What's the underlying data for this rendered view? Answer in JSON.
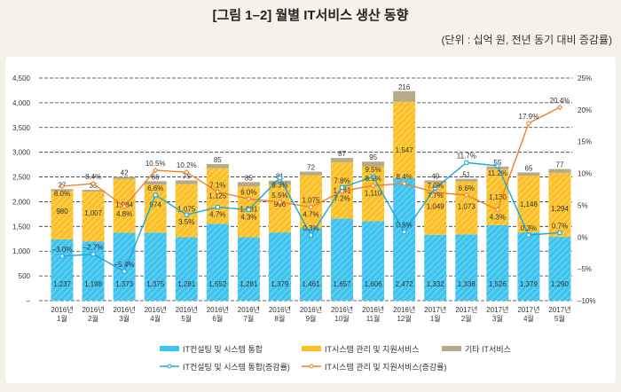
{
  "title": "[그림 1–2] 월별 IT서비스 생산 동향",
  "unit": "(단위 : 십억 원, 전년 동기 대비 증감률)",
  "chart_data": {
    "type": "bar",
    "stacked": true,
    "categories": [
      [
        "2016년",
        "1월"
      ],
      [
        "2016년",
        "2월"
      ],
      [
        "2016년",
        "3월"
      ],
      [
        "2016년",
        "4월"
      ],
      [
        "2016년",
        "5월"
      ],
      [
        "2016년",
        "6월"
      ],
      [
        "2016년",
        "7월"
      ],
      [
        "2016년",
        "8월"
      ],
      [
        "2016년",
        "9월"
      ],
      [
        "2016년",
        "10월"
      ],
      [
        "2016년",
        "11월"
      ],
      [
        "2016년",
        "12월"
      ],
      [
        "2017년",
        "1월"
      ],
      [
        "2017년",
        "2월"
      ],
      [
        "2017년",
        "3월"
      ],
      [
        "2017년",
        "4월"
      ],
      [
        "2017년",
        "5월"
      ]
    ],
    "ylim": [
      0,
      4500
    ],
    "y_ticks": [
      "–",
      "500",
      "1,000",
      "1,500",
      "2,000",
      "2,500",
      "3,000",
      "3,500",
      "4,000",
      "4,500"
    ],
    "y2lim": [
      -10,
      25
    ],
    "y2_ticks": [
      "–10%",
      "–5%",
      "0%",
      "5%",
      "10%",
      "15%",
      "20%",
      "25%"
    ],
    "grid": true,
    "series": [
      {
        "name": "IT컨설팅 및 시스템 통합",
        "kind": "bar",
        "color": "#3ec3ee",
        "values": [
          1237,
          1198,
          1373,
          1375,
          1281,
          1552,
          1281,
          1379,
          1461,
          1657,
          1606,
          2472,
          1332,
          1338,
          1526,
          1379,
          1290
        ]
      },
      {
        "name": "IT시스템 관리 및 지원서비스",
        "kind": "bar",
        "color": "#fbbf28",
        "values": [
          980,
          1007,
          1084,
          974,
          1075,
          1125,
          1031,
          966,
          1075,
          1141,
          1110,
          1547,
          1049,
          1073,
          1130,
          1148,
          1294
        ]
      },
      {
        "name": "기타 IT서비스",
        "kind": "bar",
        "color": "#b8aa88",
        "values": [
          37,
          35,
          42,
          66,
          75,
          85,
          85,
          81,
          72,
          87,
          95,
          216,
          49,
          51,
          55,
          65,
          77
        ]
      },
      {
        "name": "IT컨설팅 및 시스템 통합(증감률)",
        "kind": "line",
        "axis": "right",
        "color": "#18a8e0",
        "values": [
          -3.0,
          -2.7,
          -5.4,
          6.6,
          3.5,
          4.7,
          4.3,
          9.3,
          0.3,
          7.8,
          9.5,
          0.8,
          7.7,
          11.7,
          11.2,
          0.3,
          0.7
        ]
      },
      {
        "name": "IT시스템 관리 및 지원서비스(증감률)",
        "kind": "line",
        "axis": "right",
        "color": "#f07f2a",
        "values": [
          8.0,
          8.4,
          4.8,
          10.5,
          10.2,
          7.1,
          6.0,
          5.5,
          4.7,
          7.2,
          8.1,
          8.4,
          7.0,
          6.6,
          4.3,
          17.9,
          20.4
        ]
      }
    ],
    "legend": "bottom"
  }
}
